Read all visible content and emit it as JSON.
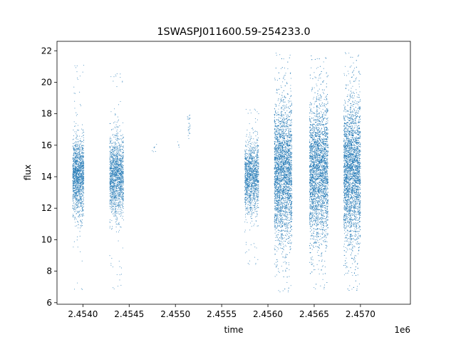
{
  "chart_data": {
    "type": "scatter",
    "title": "1SWASPJ011600.59-254233.0",
    "xlabel": "time",
    "ylabel": "flux",
    "x_offset_label": "1e6",
    "xlim": [
      2.45372,
      2.45754
    ],
    "ylim": [
      5.9,
      22.6
    ],
    "x_ticks": [
      2.454,
      2.4545,
      2.455,
      2.4555,
      2.456,
      2.4565,
      2.457
    ],
    "x_tick_labels": [
      "2.4540",
      "2.4545",
      "2.4550",
      "2.4555",
      "2.4560",
      "2.4565",
      "2.4570"
    ],
    "y_ticks": [
      6,
      8,
      10,
      12,
      14,
      16,
      18,
      20,
      22
    ],
    "y_tick_labels": [
      "6",
      "8",
      "10",
      "12",
      "14",
      "16",
      "18",
      "20",
      "22"
    ],
    "grid": false,
    "point_color": "#1f77b4",
    "series": [
      {
        "clusters": [
          {
            "x_range": [
              2.45389,
              2.45401
            ],
            "median": 14.0,
            "core_spread": [
              12.4,
              15.6
            ],
            "range": [
              6.7,
              21.7
            ],
            "count": 1500
          },
          {
            "x_range": [
              2.45429,
              2.45444
            ],
            "median": 14.0,
            "core_spread": [
              12.3,
              15.7
            ],
            "range": [
              6.7,
              20.6
            ],
            "count": 1600
          },
          {
            "x_range": [
              2.45475,
              2.4548
            ],
            "median": 15.6,
            "core_spread": [
              15.3,
              16.0
            ],
            "range": [
              15.2,
              16.1
            ],
            "count": 8
          },
          {
            "x_range": [
              2.45502,
              2.45504
            ],
            "median": 16.1,
            "core_spread": [
              15.8,
              16.4
            ],
            "range": [
              15.8,
              16.5
            ],
            "count": 5
          },
          {
            "x_range": [
              2.45513,
              2.45516
            ],
            "median": 17.2,
            "core_spread": [
              16.5,
              17.9
            ],
            "range": [
              16.4,
              18.0
            ],
            "count": 25
          },
          {
            "x_range": [
              2.45575,
              2.4559
            ],
            "median": 14.0,
            "core_spread": [
              12.5,
              15.5
            ],
            "range": [
              8.3,
              18.3
            ],
            "count": 1400
          },
          {
            "x_range": [
              2.45607,
              2.45626
            ],
            "median": 14.2,
            "core_spread": [
              11.5,
              17.5
            ],
            "range": [
              6.6,
              21.9
            ],
            "count": 3500
          },
          {
            "x_range": [
              2.45645,
              2.45665
            ],
            "median": 14.3,
            "core_spread": [
              11.5,
              17.5
            ],
            "range": [
              6.7,
              21.7
            ],
            "count": 3500
          },
          {
            "x_range": [
              2.45682,
              2.457
            ],
            "median": 14.3,
            "core_spread": [
              11.3,
              17.5
            ],
            "range": [
              6.6,
              21.9
            ],
            "count": 3500
          }
        ]
      }
    ]
  }
}
